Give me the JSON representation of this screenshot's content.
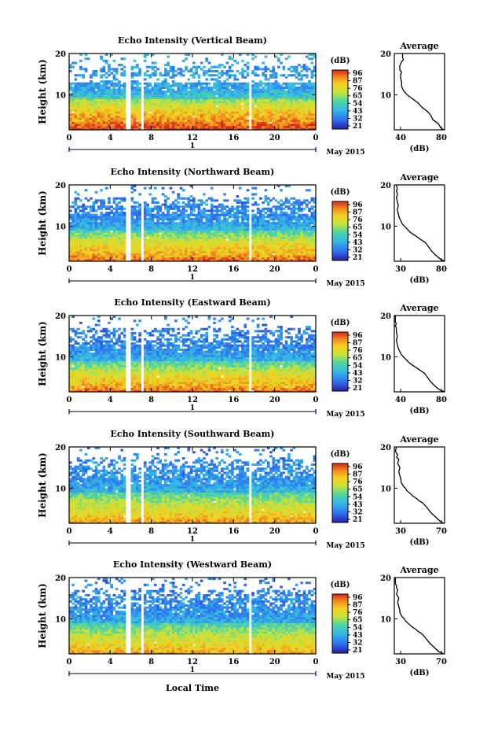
{
  "figure": {
    "ylabel": "Height (km)",
    "xlabel": "Local Time",
    "date_axis_label": "1",
    "date_label": "May 2015",
    "colorbar_unit": "(dB)",
    "colorbar_ticks": [
      "96",
      "87",
      "76",
      "65",
      "54",
      "43",
      "32",
      "21"
    ]
  },
  "chart_data": [
    {
      "type": "heatmap",
      "title": "Echo Intensity (Vertical Beam)",
      "xlabel": "",
      "ylabel": "Height (km)",
      "xlim": [
        0,
        24
      ],
      "ylim": [
        1.5,
        20
      ],
      "x_ticks": [
        "0",
        "4",
        "8",
        "12",
        "16",
        "20",
        "0"
      ],
      "y_ticks": [
        "20",
        "10"
      ],
      "colorbar": {
        "label": "(dB)",
        "range": [
          21,
          96
        ]
      },
      "average": {
        "title": "Average",
        "xlabel": "(dB)",
        "xlim": [
          30,
          85
        ],
        "x_ticks": [
          "40",
          "80"
        ],
        "x": [
          84,
          81,
          78,
          72,
          70,
          66,
          63,
          60,
          58,
          56,
          53,
          50,
          47,
          44,
          42,
          40,
          39,
          38,
          38,
          37,
          37,
          38,
          36,
          36,
          37,
          38,
          40,
          39,
          39
        ],
        "y": [
          1.5,
          2.0,
          3.0,
          4.0,
          5.0,
          6.0,
          6.5,
          7.0,
          7.5,
          8.0,
          8.5,
          9.0,
          9.5,
          10.0,
          10.5,
          11.0,
          11.5,
          12.0,
          13.0,
          14.0,
          15.0,
          15.5,
          16.0,
          17.0,
          17.5,
          18.0,
          18.5,
          19.0,
          20.0
        ]
      }
    },
    {
      "type": "heatmap",
      "title": "Echo Intensity (Northward Beam)",
      "xlabel": "",
      "ylabel": "Height (km)",
      "xlim": [
        0,
        24
      ],
      "ylim": [
        1.5,
        20
      ],
      "x_ticks": [
        "0",
        "4",
        "8",
        "12",
        "16",
        "20",
        "0"
      ],
      "y_ticks": [
        "20",
        "10"
      ],
      "colorbar": {
        "label": "(dB)",
        "range": [
          21,
          96
        ]
      },
      "average": {
        "title": "Average",
        "xlabel": "(dB)",
        "xlim": [
          30,
          80
        ],
        "x_ticks": [
          "30",
          "80"
        ],
        "x": [
          80,
          76,
          71,
          67,
          64,
          61,
          58,
          55,
          52,
          49,
          46,
          44,
          42,
          40,
          38,
          37,
          36,
          35,
          34,
          33,
          34,
          33,
          32,
          33,
          33,
          32,
          33,
          32
        ],
        "y": [
          1.5,
          2.0,
          3.0,
          4.0,
          5.0,
          6.0,
          6.5,
          7.0,
          7.5,
          8.0,
          8.5,
          9.0,
          9.5,
          10.0,
          10.5,
          11.0,
          11.5,
          12.0,
          13.0,
          14.0,
          15.0,
          16.0,
          17.0,
          17.5,
          18.0,
          18.5,
          19.0,
          20.0
        ]
      }
    },
    {
      "type": "heatmap",
      "title": "Echo Intensity (Eastward Beam)",
      "xlabel": "",
      "ylabel": "Height (km)",
      "xlim": [
        0,
        24
      ],
      "ylim": [
        1.5,
        20
      ],
      "x_ticks": [
        "0",
        "4",
        "8",
        "12",
        "16",
        "20",
        "0"
      ],
      "y_ticks": [
        "20",
        "10"
      ],
      "colorbar": {
        "label": "(dB)",
        "range": [
          21,
          96
        ]
      },
      "average": {
        "title": "Average",
        "xlabel": "(dB)",
        "xlim": [
          30,
          80
        ],
        "x_ticks": [
          "40",
          "80"
        ],
        "x": [
          80,
          75,
          70,
          66,
          63,
          60,
          57,
          54,
          51,
          48,
          45,
          43,
          41,
          39,
          37,
          36,
          35,
          34,
          33,
          32,
          33,
          32,
          32,
          31,
          32,
          31,
          31,
          31
        ],
        "y": [
          1.5,
          2.0,
          3.0,
          4.0,
          5.0,
          6.0,
          6.5,
          7.0,
          7.5,
          8.0,
          8.5,
          9.0,
          9.5,
          10.0,
          10.5,
          11.0,
          11.5,
          12.0,
          13.0,
          14.0,
          15.0,
          16.0,
          17.0,
          17.5,
          18.0,
          18.5,
          19.0,
          20.0
        ]
      }
    },
    {
      "type": "heatmap",
      "title": "Echo Intensity (Southward Beam)",
      "xlabel": "",
      "ylabel": "Height (km)",
      "xlim": [
        0,
        24
      ],
      "ylim": [
        1.5,
        20
      ],
      "x_ticks": [
        "0",
        "4",
        "8",
        "12",
        "16",
        "20",
        "0"
      ],
      "y_ticks": [
        "20",
        "10"
      ],
      "colorbar": {
        "label": "(dB)",
        "range": [
          21,
          96
        ]
      },
      "average": {
        "title": "Average",
        "xlabel": "(dB)",
        "xlim": [
          30,
          75
        ],
        "x_ticks": [
          "30",
          "70"
        ],
        "x": [
          74,
          71,
          67,
          63,
          60,
          57,
          55,
          52,
          50,
          47,
          45,
          43,
          41,
          40,
          38,
          37,
          36,
          36,
          35,
          34,
          35,
          33,
          34,
          32,
          33,
          32,
          31,
          32
        ],
        "y": [
          1.5,
          2.0,
          3.0,
          4.0,
          5.0,
          6.0,
          6.5,
          7.0,
          7.5,
          8.0,
          8.5,
          9.0,
          9.5,
          10.0,
          10.5,
          11.0,
          11.5,
          12.0,
          13.0,
          14.0,
          15.0,
          16.0,
          17.0,
          17.5,
          18.0,
          18.5,
          19.0,
          20.0
        ]
      }
    },
    {
      "type": "heatmap",
      "title": "Echo Intensity (Westward Beam)",
      "xlabel": "Local Time",
      "ylabel": "Height (km)",
      "xlim": [
        0,
        24
      ],
      "ylim": [
        1.5,
        20
      ],
      "x_ticks": [
        "0",
        "4",
        "8",
        "12",
        "16",
        "20",
        "0"
      ],
      "y_ticks": [
        "20",
        "10"
      ],
      "colorbar": {
        "label": "(dB)",
        "range": [
          21,
          96
        ]
      },
      "average": {
        "title": "Average",
        "xlabel": "(dB)",
        "xlim": [
          30,
          75
        ],
        "x_ticks": [
          "30",
          "70"
        ],
        "x": [
          74,
          70,
          66,
          62,
          59,
          56,
          54,
          51,
          49,
          46,
          44,
          42,
          40,
          39,
          37,
          36,
          35,
          35,
          34,
          33,
          34,
          32,
          33,
          32,
          32,
          31,
          31,
          31
        ],
        "y": [
          1.5,
          2.0,
          3.0,
          4.0,
          5.0,
          6.0,
          6.5,
          7.0,
          7.5,
          8.0,
          8.5,
          9.0,
          9.5,
          10.0,
          10.5,
          11.0,
          11.5,
          12.0,
          13.0,
          14.0,
          15.0,
          16.0,
          17.0,
          17.5,
          18.0,
          18.5,
          19.0,
          20.0
        ]
      }
    }
  ]
}
